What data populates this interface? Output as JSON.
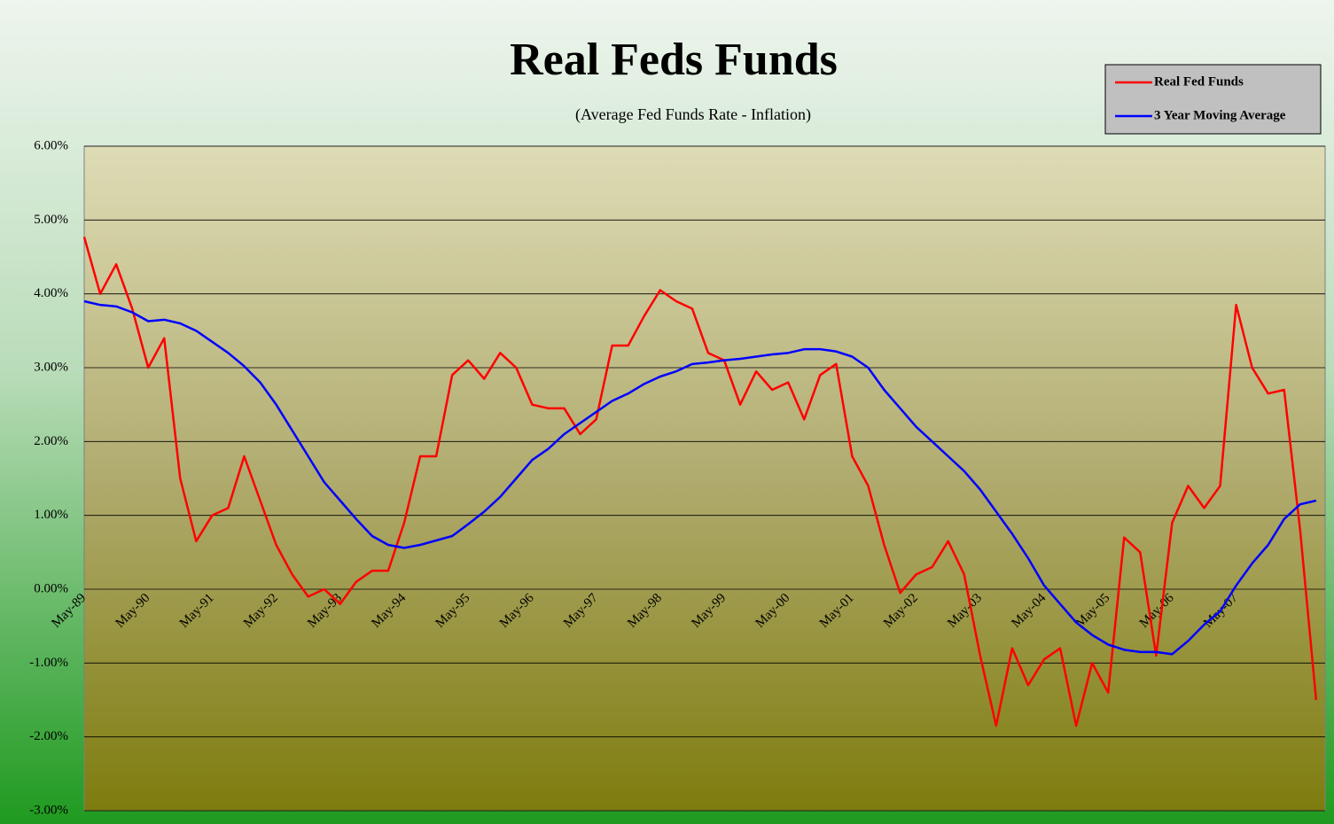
{
  "chart_data": {
    "type": "line",
    "title": "Real Feds Funds",
    "subtitle": "(Average Fed Funds Rate - Inflation)",
    "categories": [
      "May-89",
      null,
      null,
      null,
      "May-90",
      null,
      null,
      null,
      "May-91",
      null,
      null,
      null,
      "May-92",
      null,
      null,
      null,
      "May-93",
      null,
      null,
      null,
      "May-94",
      null,
      null,
      null,
      "May-95",
      null,
      null,
      null,
      "May-96",
      null,
      null,
      null,
      "May-97",
      null,
      null,
      null,
      "May-98",
      null,
      null,
      null,
      "May-99",
      null,
      null,
      null,
      "May-00",
      null,
      null,
      null,
      "May-01",
      null,
      null,
      null,
      "May-02",
      null,
      null,
      null,
      "May-03",
      null,
      null,
      null,
      "May-04",
      null,
      null,
      null,
      "May-05",
      null,
      null,
      null,
      "May-06",
      null,
      null,
      null,
      "May-07",
      null,
      null,
      null,
      null,
      null
    ],
    "series": [
      {
        "name": "Real Fed Funds",
        "color": "#ff0000",
        "values": [
          4.77,
          4.0,
          4.4,
          3.8,
          3.0,
          3.4,
          1.5,
          0.65,
          1.0,
          1.1,
          1.8,
          1.2,
          0.6,
          0.2,
          -0.1,
          0.0,
          -0.2,
          0.1,
          0.25,
          0.25,
          0.9,
          1.8,
          1.8,
          2.9,
          3.1,
          2.85,
          3.2,
          3.0,
          2.5,
          2.45,
          2.45,
          2.1,
          2.3,
          3.3,
          3.3,
          3.7,
          4.05,
          3.9,
          3.8,
          3.2,
          3.1,
          2.5,
          2.95,
          2.7,
          2.8,
          2.3,
          2.9,
          3.05,
          1.8,
          1.4,
          0.6,
          -0.05,
          0.2,
          0.3,
          0.65,
          0.2,
          -0.9,
          -1.85,
          -0.8,
          -1.3,
          -0.95,
          -0.8,
          -1.85,
          -1.0,
          -1.4,
          0.7,
          0.5,
          -0.9,
          0.9,
          1.4,
          1.1,
          1.4,
          3.85,
          3.0,
          2.65,
          2.7,
          0.8,
          -1.5
        ]
      },
      {
        "name": "3 Year Moving Average",
        "color": "#0000ff",
        "values": [
          3.9,
          3.85,
          3.83,
          3.75,
          3.63,
          3.65,
          3.6,
          3.5,
          3.35,
          3.2,
          3.02,
          2.8,
          2.5,
          2.15,
          1.8,
          1.45,
          1.2,
          0.95,
          0.72,
          0.6,
          0.56,
          0.6,
          0.66,
          0.72,
          0.88,
          1.05,
          1.25,
          1.5,
          1.75,
          1.9,
          2.1,
          2.25,
          2.4,
          2.55,
          2.65,
          2.78,
          2.88,
          2.95,
          3.05,
          3.07,
          3.1,
          3.12,
          3.15,
          3.18,
          3.2,
          3.25,
          3.25,
          3.22,
          3.15,
          3.0,
          2.7,
          2.45,
          2.2,
          2.0,
          1.8,
          1.6,
          1.35,
          1.05,
          0.75,
          0.42,
          0.05,
          -0.2,
          -0.45,
          -0.62,
          -0.75,
          -0.82,
          -0.85,
          -0.85,
          -0.88,
          -0.7,
          -0.48,
          -0.3,
          0.05,
          0.35,
          0.6,
          0.95,
          1.15,
          1.2
        ]
      }
    ],
    "ylim": [
      -3,
      6
    ],
    "yticks": [
      {
        "value": -3,
        "label": "-3.00%"
      },
      {
        "value": -2,
        "label": "-2.00%"
      },
      {
        "value": -1,
        "label": "-1.00%"
      },
      {
        "value": 0,
        "label": "0.00%"
      },
      {
        "value": 1,
        "label": "1.00%"
      },
      {
        "value": 2,
        "label": "2.00%"
      },
      {
        "value": 3,
        "label": "3.00%"
      },
      {
        "value": 4,
        "label": "4.00%"
      },
      {
        "value": 5,
        "label": "5.00%"
      },
      {
        "value": 6,
        "label": "6.00%"
      }
    ],
    "grid": true,
    "legend": "top-right"
  }
}
